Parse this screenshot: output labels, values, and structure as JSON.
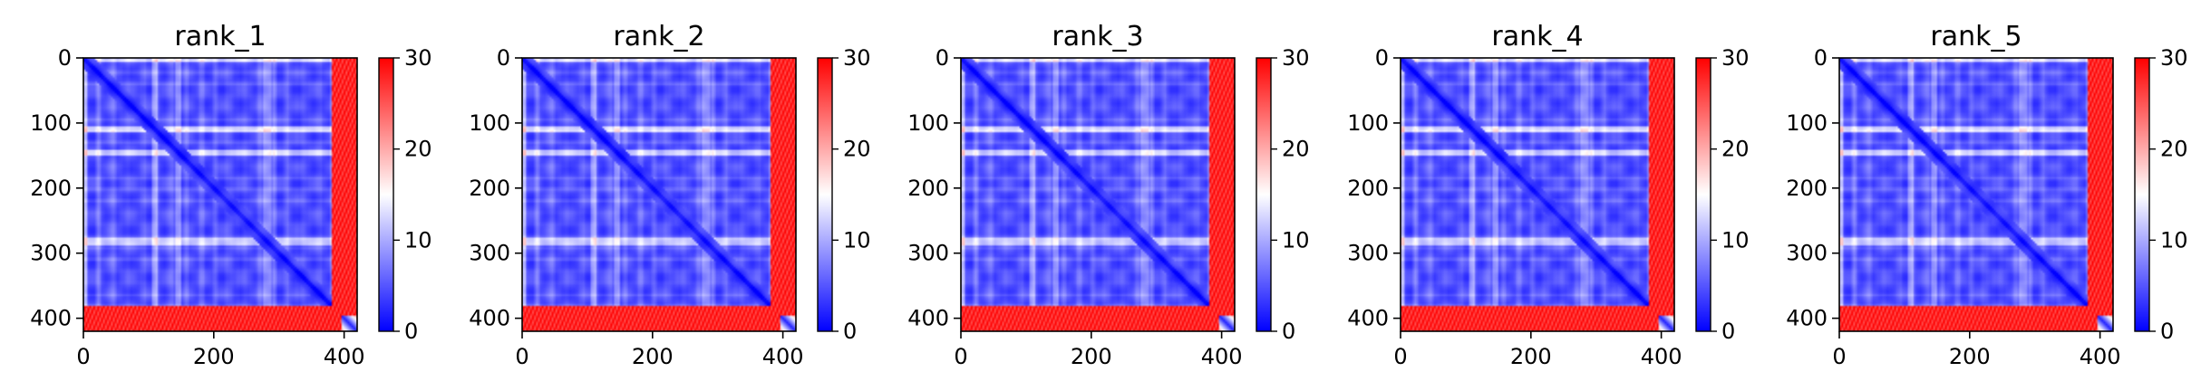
{
  "chart_data": [
    {
      "type": "heatmap",
      "title": "rank_1",
      "xlim": [
        0,
        420
      ],
      "ylim": [
        420,
        0
      ],
      "xticks": [
        0,
        200,
        400
      ],
      "yticks": [
        0,
        100,
        200,
        300,
        400
      ],
      "colorbar": {
        "min": 0,
        "max": 30,
        "ticks": [
          0,
          10,
          20,
          30
        ],
        "colormap": "bwr"
      },
      "high_rows": [
        [
          0,
          5
        ],
        [
          108,
          112
        ],
        [
          143,
          147
        ],
        [
          278,
          286
        ]
      ],
      "edge_band": {
        "start": 382,
        "end": 420,
        "value": 28
      }
    },
    {
      "type": "heatmap",
      "title": "rank_2",
      "xlim": [
        0,
        420
      ],
      "ylim": [
        420,
        0
      ],
      "xticks": [
        0,
        200,
        400
      ],
      "yticks": [
        0,
        100,
        200,
        300,
        400
      ],
      "colorbar": {
        "min": 0,
        "max": 30,
        "ticks": [
          0,
          10,
          20,
          30
        ],
        "colormap": "bwr"
      },
      "high_rows": [
        [
          0,
          5
        ],
        [
          108,
          112
        ],
        [
          143,
          147
        ],
        [
          278,
          286
        ]
      ],
      "edge_band": {
        "start": 382,
        "end": 420,
        "value": 28
      }
    },
    {
      "type": "heatmap",
      "title": "rank_3",
      "xlim": [
        0,
        420
      ],
      "ylim": [
        420,
        0
      ],
      "xticks": [
        0,
        200,
        400
      ],
      "yticks": [
        0,
        100,
        200,
        300,
        400
      ],
      "colorbar": {
        "min": 0,
        "max": 30,
        "ticks": [
          0,
          10,
          20,
          30
        ],
        "colormap": "bwr"
      },
      "high_rows": [
        [
          0,
          5
        ],
        [
          108,
          112
        ],
        [
          143,
          147
        ],
        [
          278,
          286
        ]
      ],
      "edge_band": {
        "start": 382,
        "end": 420,
        "value": 28
      }
    },
    {
      "type": "heatmap",
      "title": "rank_4",
      "xlim": [
        0,
        420
      ],
      "ylim": [
        420,
        0
      ],
      "xticks": [
        0,
        200,
        400
      ],
      "yticks": [
        0,
        100,
        200,
        300,
        400
      ],
      "colorbar": {
        "min": 0,
        "max": 30,
        "ticks": [
          0,
          10,
          20,
          30
        ],
        "colormap": "bwr"
      },
      "high_rows": [
        [
          0,
          5
        ],
        [
          108,
          112
        ],
        [
          143,
          147
        ],
        [
          278,
          286
        ]
      ],
      "edge_band": {
        "start": 382,
        "end": 420,
        "value": 28
      }
    },
    {
      "type": "heatmap",
      "title": "rank_5",
      "xlim": [
        0,
        420
      ],
      "ylim": [
        420,
        0
      ],
      "xticks": [
        0,
        200,
        400
      ],
      "yticks": [
        0,
        100,
        200,
        300,
        400
      ],
      "colorbar": {
        "min": 0,
        "max": 30,
        "ticks": [
          0,
          10,
          20,
          30
        ],
        "colormap": "bwr"
      },
      "high_rows": [
        [
          0,
          5
        ],
        [
          108,
          112
        ],
        [
          143,
          147
        ],
        [
          278,
          286
        ]
      ],
      "edge_band": {
        "start": 382,
        "end": 420,
        "value": 28
      }
    }
  ],
  "colors": {
    "low": "#0000ff",
    "mid": "#ffffff",
    "high": "#ff0000",
    "diagonal": "#0a0aff"
  }
}
